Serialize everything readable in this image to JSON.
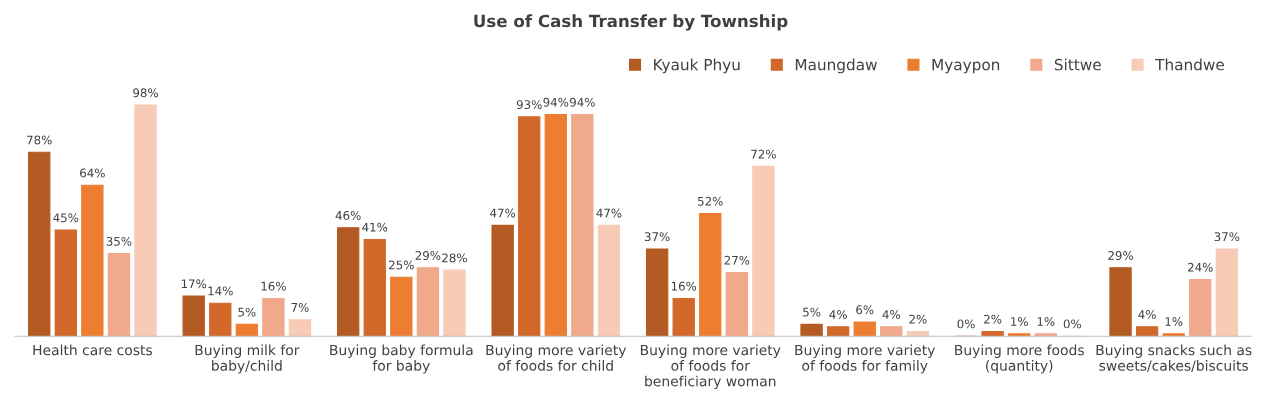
{
  "chart_data": {
    "type": "bar",
    "title": "Use of Cash Transfer by Township",
    "categories": [
      "Health care costs",
      "Buying milk for\nbaby/child",
      "Buying baby formula\nfor baby",
      "Buying more variety\nof foods for child",
      "Buying more variety\nof foods for\nbeneficiary woman",
      "Buying more variety\nof foods for family",
      "Buying more foods\n(quantity)",
      "Buying snacks such as\nsweets/cakes/biscuits"
    ],
    "series": [
      {
        "name": "Kyauk Phyu",
        "color": "#b35b23",
        "values": [
          78,
          17,
          46,
          47,
          37,
          5,
          0,
          29
        ],
        "value_labels": [
          "78%",
          "17%",
          "46%",
          "47%",
          "37%",
          "5%",
          "0%",
          "29%"
        ]
      },
      {
        "name": "Maungdaw",
        "color": "#d2692b",
        "values": [
          45,
          14,
          41,
          93,
          16,
          4,
          2,
          4
        ],
        "value_labels": [
          "45%",
          "14%",
          "41%",
          "93%",
          "16%",
          "4%",
          "2%",
          "4%"
        ]
      },
      {
        "name": "Myaypon",
        "color": "#ed7d31",
        "values": [
          64,
          5,
          25,
          94,
          52,
          6,
          1,
          1
        ],
        "value_labels": [
          "64%",
          "5%",
          "25%",
          "94%",
          "52%",
          "6%",
          "1%",
          "1%"
        ]
      },
      {
        "name": "Sittwe",
        "color": "#f0a98a",
        "values": [
          35,
          16,
          29,
          94,
          27,
          4,
          1,
          24
        ],
        "value_labels": [
          "35%",
          "16%",
          "29%",
          "94%",
          "27%",
          "4%",
          "1%",
          "24%"
        ]
      },
      {
        "name": "Thandwe",
        "color": "#f7cbb5",
        "values": [
          98,
          7,
          28,
          47,
          72,
          2,
          0,
          37
        ],
        "value_labels": [
          "98%",
          "7%",
          "28%",
          "47%",
          "72%",
          "2%",
          "0%",
          "37%"
        ]
      }
    ],
    "legend": "top right",
    "grid": false
  }
}
